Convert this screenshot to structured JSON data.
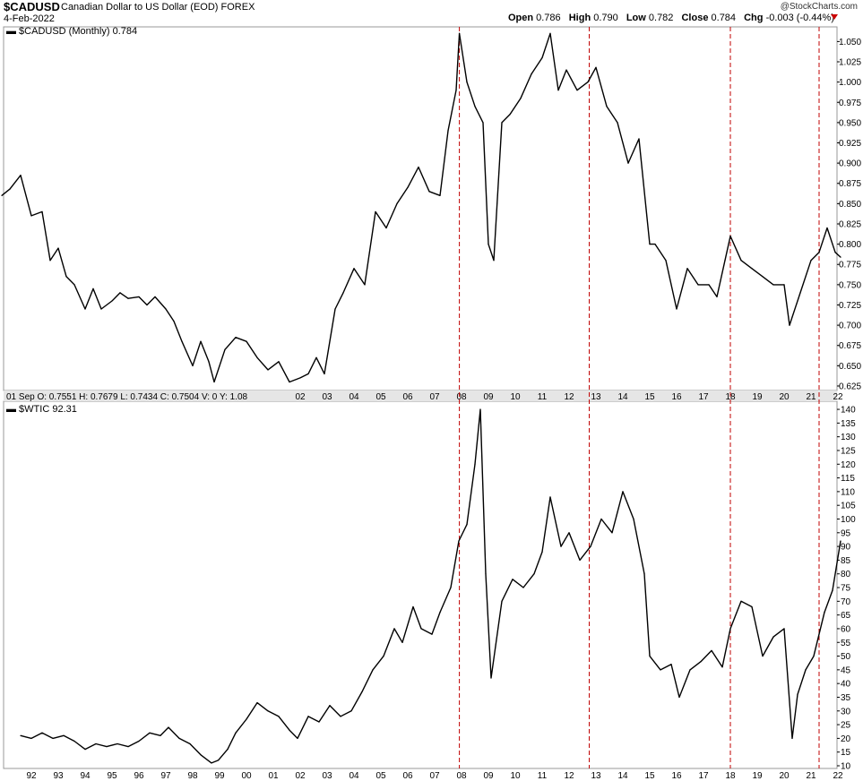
{
  "header": {
    "symbol": "$CADUSD",
    "description": "Canadian Dollar to US Dollar (EOD)  FOREX",
    "date": "4-Feb-2022",
    "brand": "@StockCharts.com",
    "ohlc": [
      {
        "label": "Open",
        "value": "0.786"
      },
      {
        "label": "High",
        "value": "0.790"
      },
      {
        "label": "Low",
        "value": "0.782"
      },
      {
        "label": "Close",
        "value": "0.784"
      },
      {
        "label": "Chg",
        "value": "-0.003 (-0.44%)"
      }
    ]
  },
  "top_panel": {
    "title": "$CADUSD (Monthly) 0.784",
    "info_bar": "01 Sep  O: 0.7551   H: 0.7679   L: 0.7434   C: 0.7504   V: 0   Y: 1.08"
  },
  "bottom_panel": {
    "title": "$WTIC 92.31"
  },
  "colors": {
    "line": "#000000",
    "marker": "#c00000",
    "grid": "#cccccc",
    "info_bg": "#e6e6e6"
  },
  "chart_data": [
    {
      "type": "line",
      "title": "$CADUSD (Monthly) 0.784",
      "ylim": [
        0.62,
        1.07
      ],
      "y_ticks": [
        0.625,
        0.65,
        0.675,
        0.7,
        0.725,
        0.75,
        0.775,
        0.8,
        0.825,
        0.85,
        0.875,
        0.9,
        0.925,
        0.95,
        0.975,
        1.0,
        1.025,
        1.05
      ],
      "x_tick_labels": [
        "02",
        "03",
        "04",
        "05",
        "06",
        "07",
        "08",
        "09",
        "10",
        "11",
        "12",
        "13",
        "14",
        "15",
        "16",
        "17",
        "18",
        "19",
        "20",
        "21",
        "22"
      ],
      "x": [
        1990.9,
        1991.2,
        1991.6,
        1992.0,
        1992.4,
        1992.7,
        1993.0,
        1993.3,
        1993.6,
        1994.0,
        1994.3,
        1994.6,
        1995.0,
        1995.3,
        1995.6,
        1996.0,
        1996.3,
        1996.6,
        1997.0,
        1997.3,
        1997.6,
        1998.0,
        1998.3,
        1998.6,
        1998.8,
        1999.2,
        1999.6,
        2000.0,
        2000.4,
        2000.8,
        2001.2,
        2001.6,
        2002.0,
        2002.3,
        2002.6,
        2002.9,
        2003.3,
        2003.6,
        2004.0,
        2004.4,
        2004.8,
        2005.2,
        2005.6,
        2006.0,
        2006.4,
        2006.8,
        2007.2,
        2007.5,
        2007.8,
        2007.92,
        2008.2,
        2008.5,
        2008.8,
        2009.0,
        2009.2,
        2009.5,
        2009.8,
        2010.2,
        2010.6,
        2011.0,
        2011.3,
        2011.6,
        2011.9,
        2012.3,
        2012.7,
        2013.0,
        2013.4,
        2013.8,
        2014.2,
        2014.6,
        2015.0,
        2015.2,
        2015.6,
        2016.0,
        2016.4,
        2016.8,
        2017.2,
        2017.5,
        2017.8,
        2018.0,
        2018.4,
        2018.8,
        2019.2,
        2019.6,
        2020.0,
        2020.2,
        2020.6,
        2021.0,
        2021.3,
        2021.6,
        2021.9,
        2022.1
      ],
      "values": [
        0.86,
        0.868,
        0.885,
        0.835,
        0.84,
        0.78,
        0.795,
        0.76,
        0.75,
        0.72,
        0.745,
        0.72,
        0.73,
        0.74,
        0.733,
        0.735,
        0.725,
        0.735,
        0.72,
        0.705,
        0.68,
        0.65,
        0.68,
        0.655,
        0.63,
        0.67,
        0.685,
        0.68,
        0.66,
        0.645,
        0.655,
        0.63,
        0.635,
        0.64,
        0.66,
        0.64,
        0.72,
        0.74,
        0.77,
        0.75,
        0.84,
        0.82,
        0.85,
        0.87,
        0.895,
        0.865,
        0.86,
        0.94,
        0.99,
        1.06,
        1.0,
        0.97,
        0.95,
        0.8,
        0.78,
        0.95,
        0.96,
        0.98,
        1.01,
        1.03,
        1.06,
        0.99,
        1.015,
        0.99,
        1.0,
        1.018,
        0.97,
        0.95,
        0.9,
        0.93,
        0.8,
        0.8,
        0.78,
        0.72,
        0.77,
        0.75,
        0.75,
        0.735,
        0.78,
        0.81,
        0.78,
        0.77,
        0.76,
        0.75,
        0.75,
        0.7,
        0.74,
        0.78,
        0.79,
        0.82,
        0.79,
        0.784
      ]
    },
    {
      "type": "line",
      "title": "$WTIC 92.31",
      "ylim": [
        10,
        140
      ],
      "y_ticks": [
        10,
        15,
        20,
        25,
        30,
        35,
        40,
        45,
        50,
        55,
        60,
        65,
        70,
        75,
        80,
        85,
        90,
        95,
        100,
        105,
        110,
        115,
        120,
        125,
        130,
        135,
        140
      ],
      "x_tick_labels": [
        "92",
        "93",
        "94",
        "95",
        "96",
        "97",
        "98",
        "99",
        "00",
        "01",
        "02",
        "03",
        "04",
        "05",
        "06",
        "07",
        "08",
        "09",
        "10",
        "11",
        "12",
        "13",
        "14",
        "15",
        "16",
        "17",
        "18",
        "19",
        "20",
        "21",
        "22"
      ],
      "x": [
        1991.6,
        1992.0,
        1992.4,
        1992.8,
        1993.2,
        1993.6,
        1994.0,
        1994.4,
        1994.8,
        1995.2,
        1995.6,
        1996.0,
        1996.4,
        1996.8,
        1997.1,
        1997.5,
        1997.9,
        1998.3,
        1998.7,
        1998.95,
        1999.3,
        1999.6,
        2000.0,
        2000.4,
        2000.8,
        2001.2,
        2001.6,
        2001.9,
        2002.3,
        2002.7,
        2003.1,
        2003.5,
        2003.9,
        2004.3,
        2004.7,
        2005.1,
        2005.5,
        2005.8,
        2006.2,
        2006.5,
        2006.9,
        2007.2,
        2007.6,
        2007.9,
        2008.2,
        2008.5,
        2008.7,
        2008.9,
        2009.1,
        2009.5,
        2009.9,
        2010.3,
        2010.7,
        2011.0,
        2011.3,
        2011.7,
        2012.0,
        2012.4,
        2012.8,
        2013.2,
        2013.6,
        2014.0,
        2014.4,
        2014.8,
        2015.0,
        2015.4,
        2015.8,
        2016.1,
        2016.5,
        2016.9,
        2017.3,
        2017.7,
        2018.0,
        2018.4,
        2018.8,
        2019.2,
        2019.6,
        2020.0,
        2020.3,
        2020.5,
        2020.8,
        2021.1,
        2021.5,
        2021.8,
        2022.1
      ],
      "values": [
        21,
        20,
        22,
        20,
        21,
        19,
        16,
        18,
        17,
        18,
        17,
        19,
        22,
        21,
        24,
        20,
        18,
        14,
        11,
        12,
        16,
        22,
        27,
        33,
        30,
        28,
        23,
        20,
        28,
        26,
        32,
        28,
        30,
        37,
        45,
        50,
        60,
        55,
        68,
        60,
        58,
        66,
        75,
        92,
        98,
        120,
        140,
        80,
        42,
        70,
        78,
        75,
        80,
        88,
        108,
        90,
        95,
        85,
        90,
        100,
        95,
        110,
        100,
        80,
        50,
        45,
        47,
        35,
        45,
        48,
        52,
        46,
        60,
        70,
        68,
        50,
        57,
        60,
        20,
        36,
        45,
        50,
        66,
        74,
        92
      ]
    }
  ]
}
